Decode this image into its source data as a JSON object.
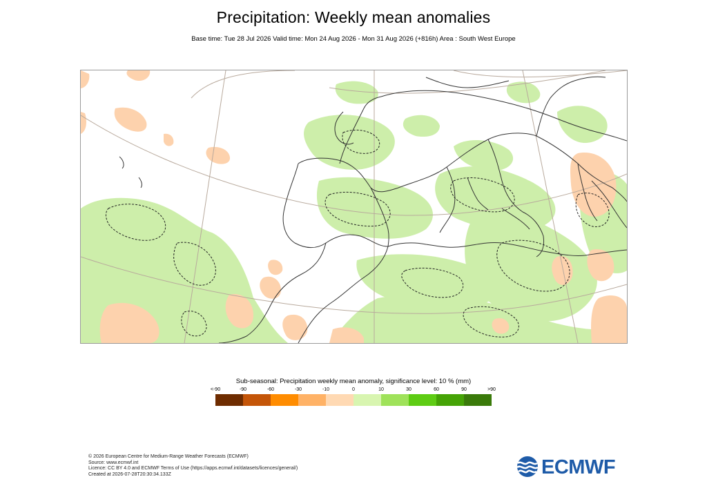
{
  "title": "Precipitation: Weekly mean anomalies",
  "subtitle": "Base time: Tue 28 Jul 2026 Valid time: Mon 24 Aug 2026 - Mon 31 Aug 2026 (+816h) Area : South West Europe",
  "legend": {
    "title": "Sub-seasonal: Precipitation weekly mean anomaly, significance level: 10 % (mm)",
    "labels": [
      "<-90",
      "-90",
      "-60",
      "-30",
      "-10",
      "0",
      "10",
      "30",
      "60",
      "90",
      ">90"
    ],
    "colors": [
      "#6e2c00",
      "#c45508",
      "#ff8c00",
      "#ffb266",
      "#ffd9b3",
      "#d8f5b0",
      "#9fe25a",
      "#5ecc14",
      "#45a306",
      "#3a7a0a"
    ]
  },
  "map": {
    "land_color": "#ffffff",
    "wet_anomaly_color": "#cdeeaa",
    "dry_anomaly_color": "#fdd2ad",
    "coastline_color": "#333333",
    "graticule_color": "#b8a99c"
  },
  "footer": {
    "line1": "© 2026 European Centre for Medium-Range Weather Forecasts (ECMWF)",
    "line2": "Source: www.ecmwf.int",
    "line3": "Licence: CC BY 4.0 and ECMWF Terms of Use (https://apps.ecmwf.int/datasets/licences/general/)",
    "line4": "Created at 2026-07-28T20:30:34.133Z"
  },
  "logo": {
    "text": "ECMWF",
    "color": "#1e5ba8"
  }
}
